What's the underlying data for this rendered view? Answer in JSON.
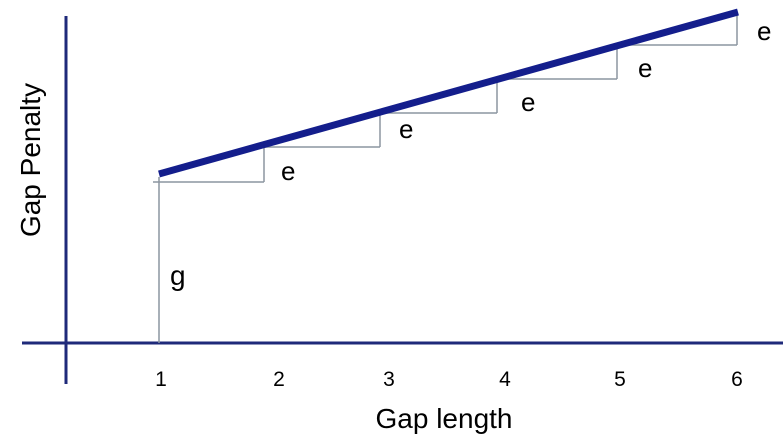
{
  "diagram": {
    "x_axis_label": "Gap length",
    "y_axis_label": "Gap Penalty",
    "gap_lengths": [
      "1",
      "2",
      "3",
      "4",
      "5",
      "6"
    ],
    "intercept_label": "g",
    "step_label": "e",
    "colors": {
      "axis": "#1f2a7a",
      "penalty_line": "#141e8c",
      "construction": "#8c96a0",
      "text": "#000000"
    }
  }
}
